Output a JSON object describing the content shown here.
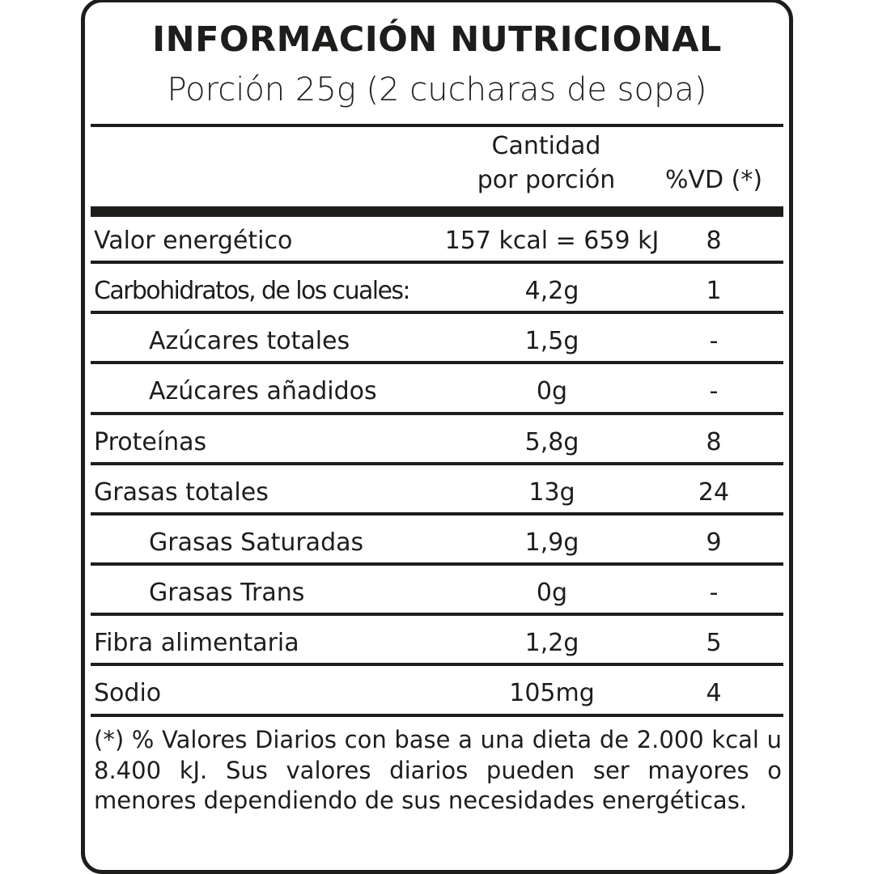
{
  "title": "INFORMACIÓN NUTRICIONAL",
  "portion": "Porción 25g (2 cucharas de sopa)",
  "header": {
    "amount_line1": "Cantidad",
    "amount_line2": "por porción",
    "vd": "%VD (*)"
  },
  "rows": [
    {
      "name": "Valor energético",
      "amount": "157 kcal = 659 kJ",
      "vd": "8"
    },
    {
      "name": "Carbohidratos, de los cuales:",
      "amount": "4,2g",
      "vd": "1"
    },
    {
      "name": "Azúcares totales",
      "amount": "1,5g",
      "vd": "-"
    },
    {
      "name": "Azúcares añadidos",
      "amount": "0g",
      "vd": "-"
    },
    {
      "name": "Proteínas",
      "amount": "5,8g",
      "vd": "8"
    },
    {
      "name": "Grasas totales",
      "amount": "13g",
      "vd": "24"
    },
    {
      "name": "Grasas Saturadas",
      "amount": "1,9g",
      "vd": "9"
    },
    {
      "name": "Grasas Trans",
      "amount": "0g",
      "vd": "-"
    },
    {
      "name": "Fibra alimentaria",
      "amount": "1,2g",
      "vd": "5"
    },
    {
      "name": "Sodio",
      "amount": "105mg",
      "vd": "4"
    }
  ],
  "footnote": "(*) % Valores Diarios con base a una dieta de 2.000 kcal u 8.400 kJ. Sus valores diarios pueden ser mayores o menores dependiendo de sus necesidades energéticas."
}
